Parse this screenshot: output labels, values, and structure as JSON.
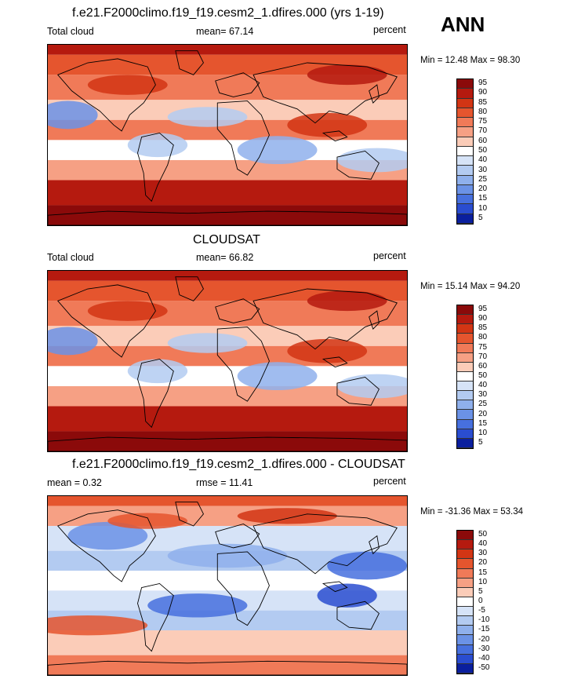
{
  "header": {
    "season": "ANN"
  },
  "panels": [
    {
      "title": "f.e21.F2000climo.f19_f19.cesm2_1.dfires.000 (yrs 1-19)",
      "left_label": "Total cloud",
      "center_label": "mean=  67.14",
      "right_label": "percent",
      "minmax": "Min =  12.48 Max =  98.30"
    },
    {
      "title": "CLOUDSAT",
      "left_label": "Total cloud",
      "center_label": "mean=  66.82",
      "right_label": "percent",
      "minmax": "Min =  15.14 Max =  94.20"
    },
    {
      "title": "f.e21.F2000climo.f19_f19.cesm2_1.dfires.000 - CLOUDSAT",
      "left_label": "mean =   0.32",
      "center_label": "rmse =  11.41",
      "right_label": "percent",
      "minmax": "Min = -31.36 Max =  53.34"
    }
  ],
  "chart_data": [
    {
      "type": "heatmap",
      "title": "f.e21.F2000climo.f19_f19.cesm2_1.dfires.000 (yrs 1-19)",
      "variable": "Total cloud",
      "units": "percent",
      "mean": 67.14,
      "min": 12.48,
      "max": 98.3,
      "colorbar_levels": [
        "95",
        "90",
        "85",
        "80",
        "75",
        "70",
        "60",
        "50",
        "40",
        "30",
        "25",
        "20",
        "15",
        "10",
        "5"
      ],
      "colorbar_colors": [
        "#8b0a0a",
        "#b51a0f",
        "#d23514",
        "#e5552e",
        "#f07a58",
        "#f6a084",
        "#fbccb8",
        "#ffffff",
        "#d6e3f7",
        "#b3cbf1",
        "#8fb0ec",
        "#6b92e6",
        "#4770de",
        "#2a4dd0",
        "#0a1f9e"
      ]
    },
    {
      "type": "heatmap",
      "title": "CLOUDSAT",
      "variable": "Total cloud",
      "units": "percent",
      "mean": 66.82,
      "min": 15.14,
      "max": 94.2,
      "colorbar_levels": [
        "95",
        "90",
        "85",
        "80",
        "75",
        "70",
        "60",
        "50",
        "40",
        "30",
        "25",
        "20",
        "15",
        "10",
        "5"
      ],
      "colorbar_colors": [
        "#8b0a0a",
        "#b51a0f",
        "#d23514",
        "#e5552e",
        "#f07a58",
        "#f6a084",
        "#fbccb8",
        "#ffffff",
        "#d6e3f7",
        "#b3cbf1",
        "#8fb0ec",
        "#6b92e6",
        "#4770de",
        "#2a4dd0",
        "#0a1f9e"
      ]
    },
    {
      "type": "heatmap",
      "title": "f.e21.F2000climo.f19_f19.cesm2_1.dfires.000 - CLOUDSAT",
      "units": "percent",
      "mean": 0.32,
      "rmse": 11.41,
      "min": -31.36,
      "max": 53.34,
      "colorbar_levels": [
        "50",
        "40",
        "30",
        "20",
        "15",
        "10",
        "5",
        "0",
        "-5",
        "-10",
        "-15",
        "-20",
        "-30",
        "-40",
        "-50"
      ],
      "colorbar_colors": [
        "#8b0a0a",
        "#b51a0f",
        "#d23514",
        "#e5552e",
        "#f07a58",
        "#f6a084",
        "#fbccb8",
        "#ffffff",
        "#d6e3f7",
        "#b3cbf1",
        "#8fb0ec",
        "#6b92e6",
        "#4770de",
        "#2a4dd0",
        "#0a1f9e"
      ]
    }
  ]
}
